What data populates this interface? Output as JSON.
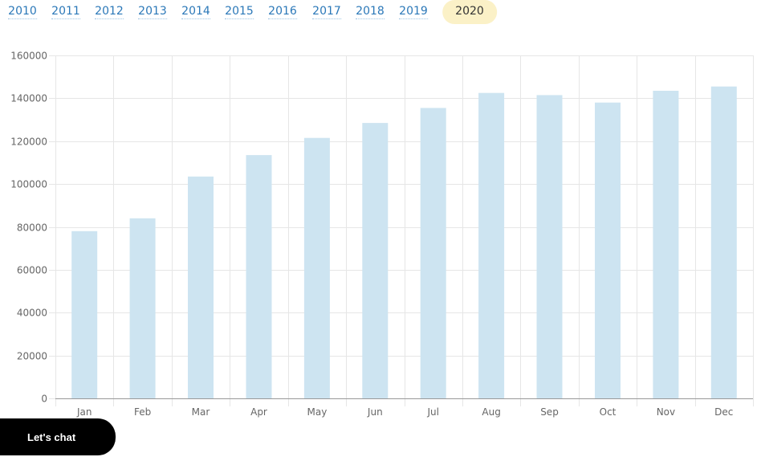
{
  "year_tabs": {
    "items": [
      "2010",
      "2011",
      "2012",
      "2013",
      "2014",
      "2015",
      "2016",
      "2017",
      "2018",
      "2019",
      "2020"
    ],
    "active": "2020"
  },
  "chat": {
    "label": "Let's chat"
  },
  "colors": {
    "bar": "#cde4f1",
    "grid": "#e6e6e6",
    "axis": "#999999",
    "tab_link": "#2b78b8",
    "tab_active_bg": "#fbf1c7",
    "chat_bg": "#000000"
  },
  "chart_data": {
    "type": "bar",
    "categories": [
      "Jan",
      "Feb",
      "Mar",
      "Apr",
      "May",
      "Jun",
      "Jul",
      "Aug",
      "Sep",
      "Oct",
      "Nov",
      "Dec"
    ],
    "values": [
      78000,
      84000,
      103500,
      113500,
      121500,
      128500,
      135500,
      142500,
      141500,
      138000,
      143500,
      145500
    ],
    "ylim": [
      0,
      160000
    ],
    "yticks": [
      0,
      20000,
      40000,
      60000,
      80000,
      100000,
      120000,
      140000,
      160000
    ],
    "grid": true,
    "legend": "none"
  }
}
